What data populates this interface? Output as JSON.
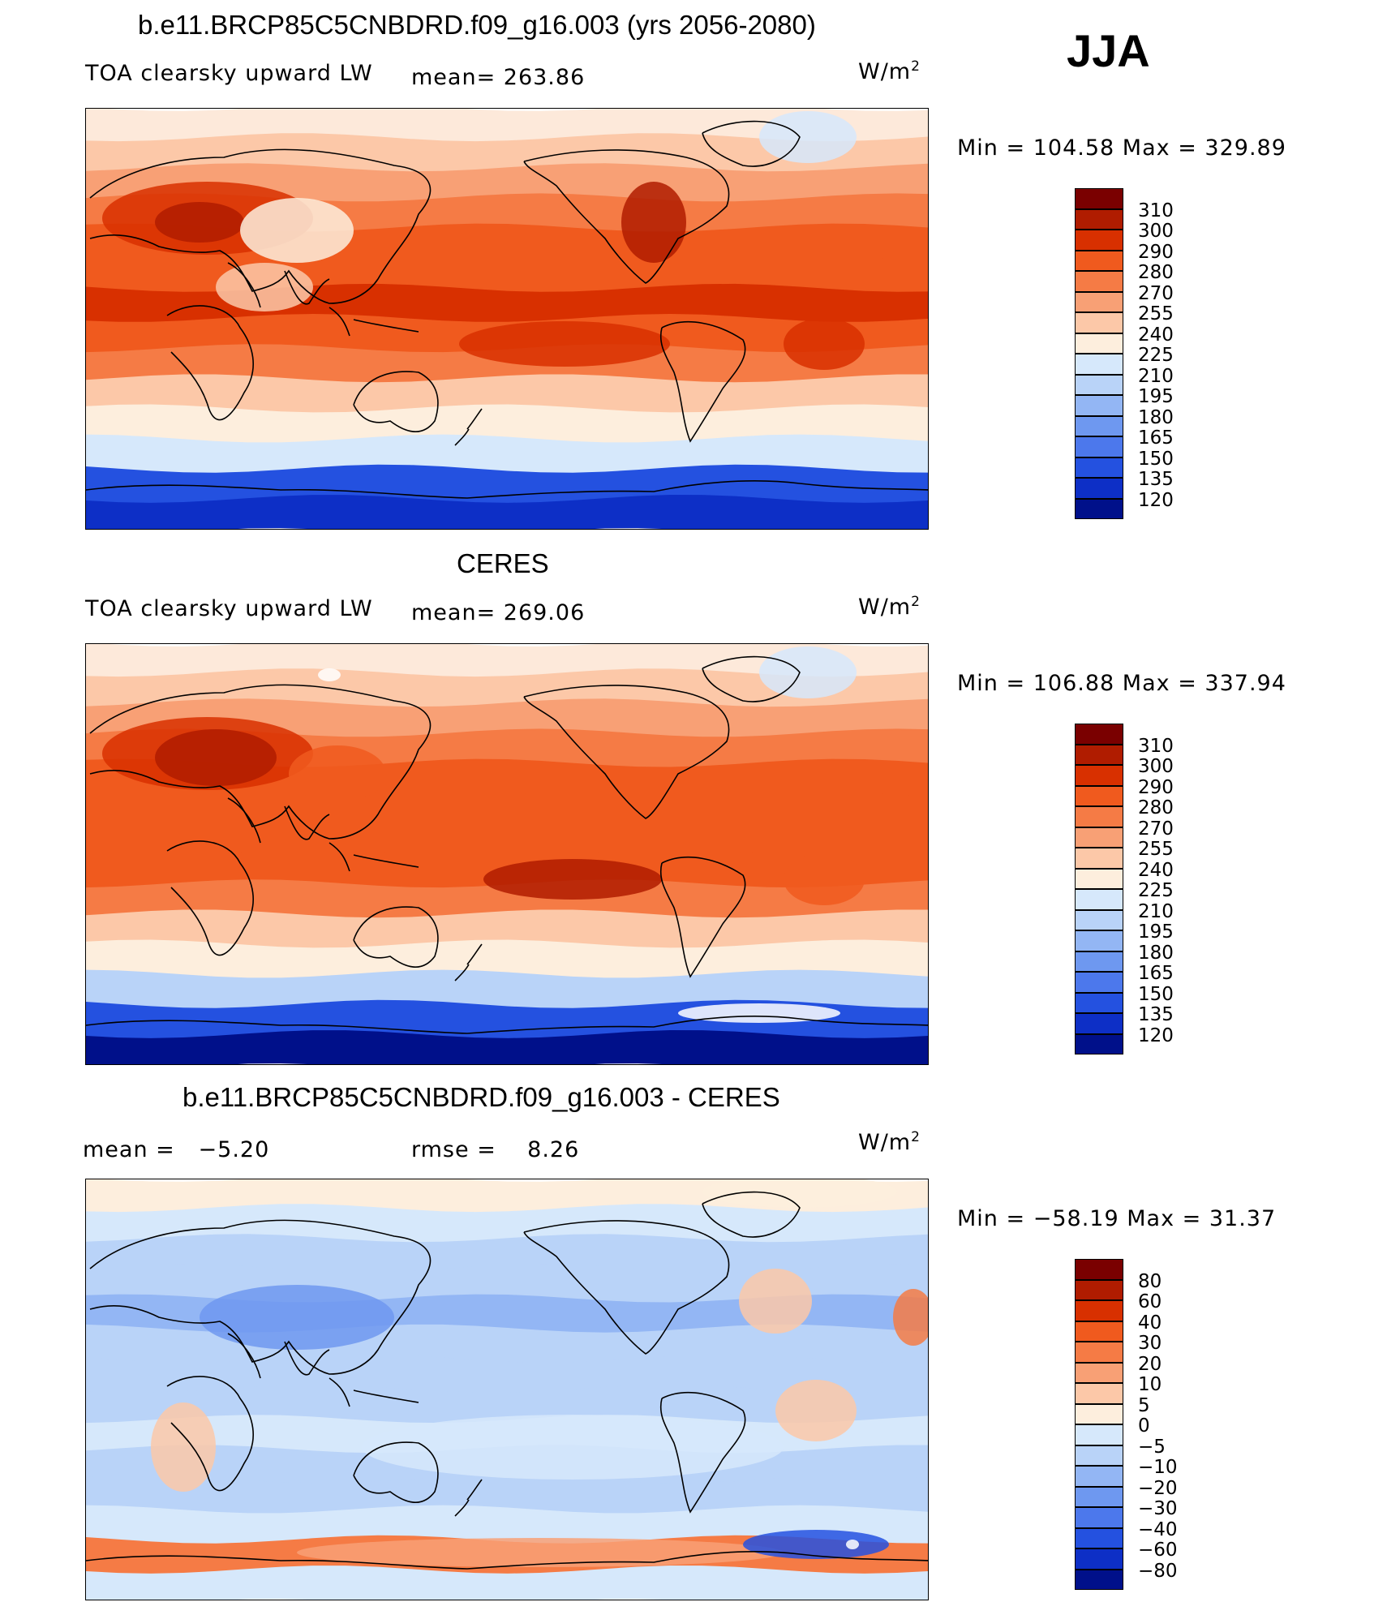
{
  "season": "JJA",
  "panels": [
    {
      "title": "b.e11.BRCP85C5CNBDRD.f09_g16.003 (yrs 2056-2080)",
      "left_label": "TOA clearsky upward LW",
      "center_label": "mean= 263.86",
      "units": "W/m",
      "units_sup": "2",
      "min_label": "Min",
      "min_value": "104.58",
      "max_label": "Max",
      "max_value": "329.89",
      "colorbar_type": "abs"
    },
    {
      "title": "CERES",
      "left_label": "TOA clearsky upward LW",
      "center_label": "mean= 269.06",
      "units": "W/m",
      "units_sup": "2",
      "min_label": "Min",
      "min_value": "106.88",
      "max_label": "Max",
      "max_value": "337.94",
      "colorbar_type": "abs"
    },
    {
      "title": "b.e11.BRCP85C5CNBDRD.f09_g16.003 - CERES",
      "left_label": "mean =   −5.20",
      "center_label": "rmse =    8.26",
      "units": "W/m",
      "units_sup": "2",
      "min_label": "Min",
      "min_value": "−58.19",
      "max_label": "Max",
      "max_value": "31.37",
      "colorbar_type": "diff"
    }
  ],
  "colorbars": {
    "abs": {
      "labels": [
        "310",
        "300",
        "290",
        "280",
        "270",
        "255",
        "240",
        "225",
        "210",
        "195",
        "180",
        "165",
        "150",
        "135",
        "120"
      ],
      "colors": [
        "#7a0000",
        "#b01c00",
        "#d83000",
        "#f05a1e",
        "#f57b45",
        "#f8a075",
        "#fcc8a8",
        "#fdeedd",
        "#d6e8fb",
        "#b9d3f8",
        "#93b6f4",
        "#6e98f0",
        "#4c78ec",
        "#2451e0",
        "#0d2fc6",
        "#00108a"
      ]
    },
    "diff": {
      "labels": [
        "80",
        "60",
        "40",
        "30",
        "20",
        "10",
        "5",
        "0",
        "−5",
        "−10",
        "−20",
        "−30",
        "−40",
        "−60",
        "−80"
      ],
      "colors": [
        "#7a0000",
        "#b01c00",
        "#d83000",
        "#f05a1e",
        "#f57b45",
        "#f8a075",
        "#fcc8a8",
        "#fdeedd",
        "#d6e8fb",
        "#b9d3f8",
        "#93b6f4",
        "#6e98f0",
        "#4c78ec",
        "#2451e0",
        "#0d2fc6",
        "#00108a"
      ]
    }
  },
  "maps": [
    {
      "bands": [
        "#fde9da",
        "#fcc8a8",
        "#f8a075",
        "#f57b45",
        "#f05a1e",
        "#f05a1e",
        "#d83000",
        "#f05a1e",
        "#f57b45",
        "#fcc8a8",
        "#fdeedd",
        "#d6e8fb",
        "#2451e0",
        "#0d2fc6"
      ]
    },
    {
      "bands": [
        "#fde9da",
        "#fcc8a8",
        "#f8a075",
        "#f57b45",
        "#f05a1e",
        "#f05a1e",
        "#f05a1e",
        "#f05a1e",
        "#f57b45",
        "#fcc8a8",
        "#fdeedd",
        "#b9d3f8",
        "#2451e0",
        "#00108a"
      ]
    },
    {
      "bands": [
        "#fdeedd",
        "#d6e8fb",
        "#b9d3f8",
        "#b9d3f8",
        "#93b6f4",
        "#b9d3f8",
        "#b9d3f8",
        "#b9d3f8",
        "#d6e8fb",
        "#b9d3f8",
        "#b9d3f8",
        "#d6e8fb",
        "#f57b45",
        "#d6e8fb"
      ]
    }
  ]
}
